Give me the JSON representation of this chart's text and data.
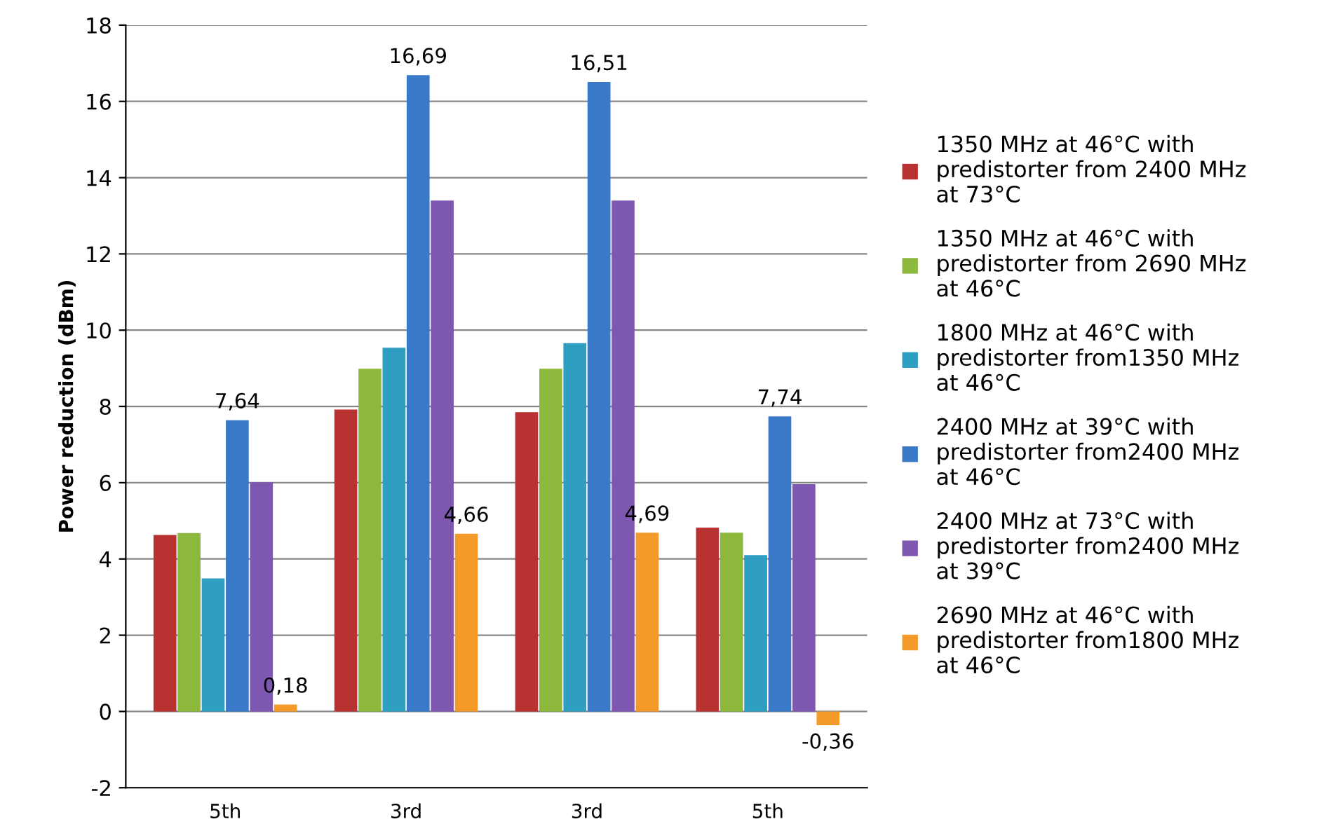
{
  "chart_data": {
    "type": "bar",
    "ylabel": "Power reduction (dBm)",
    "categories": [
      "5th",
      "3rd",
      "3rd",
      "5th"
    ],
    "series": [
      {
        "name": "1350 MHz at 46°C with predistorter from 2400 MHz at 73°C",
        "color": "#b83232",
        "values": [
          4.63,
          7.92,
          7.85,
          4.82
        ]
      },
      {
        "name": "1350 MHz at 46°C with predistorter from 2690 MHz at 46°C",
        "color": "#8cb83c",
        "values": [
          4.68,
          8.99,
          8.99,
          4.69
        ]
      },
      {
        "name": "1800 MHz at 46°C with predistorter from1350 MHz at 46°C",
        "color": "#2e9fc0",
        "values": [
          3.49,
          9.54,
          9.66,
          4.1
        ]
      },
      {
        "name": "2400 MHz at 39°C with predistorter from2400 MHz at 46°C",
        "color": "#3a78c8",
        "values": [
          7.64,
          16.69,
          16.51,
          7.74
        ],
        "value_labels": [
          "7,64",
          "16,69",
          "16,51",
          "7,74"
        ]
      },
      {
        "name": "2400 MHz at 73°C with predistorter from2400 MHz at 39°C",
        "color": "#7e57b0",
        "values": [
          6.01,
          13.4,
          13.4,
          5.96
        ]
      },
      {
        "name": "2690 MHz at 46°C with predistorter from1800 MHz at 46°C",
        "color": "#f39a2a",
        "values": [
          0.18,
          4.66,
          4.69,
          -0.36
        ],
        "value_labels": [
          "0,18",
          "4,66",
          "4,69",
          "-0,36"
        ]
      }
    ],
    "ylim": [
      -2,
      18
    ],
    "yticks": [
      -2,
      0,
      2,
      4,
      6,
      8,
      10,
      12,
      14,
      16,
      18
    ],
    "grid": "y",
    "legend": "right"
  }
}
